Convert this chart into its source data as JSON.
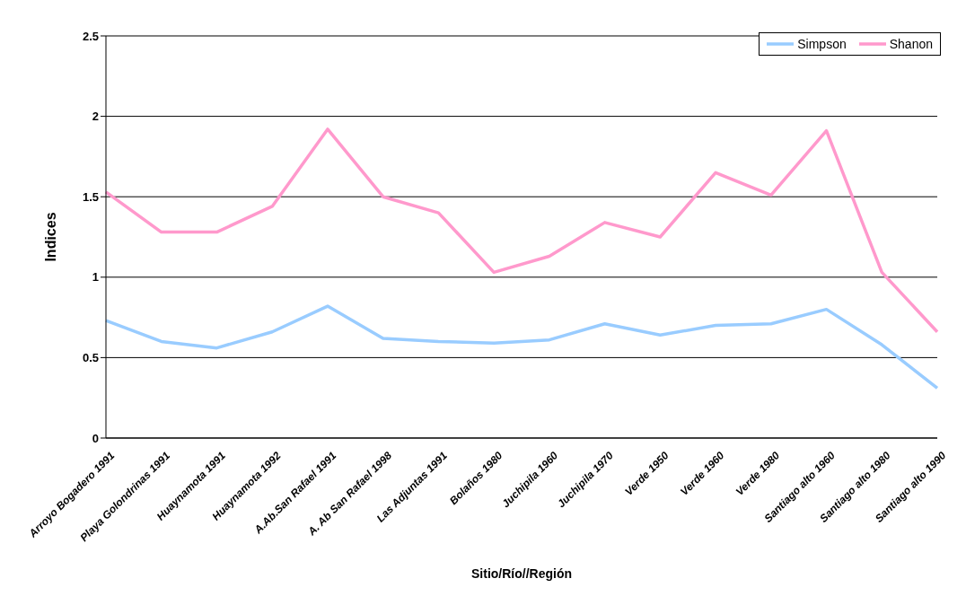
{
  "chart_data": {
    "type": "line",
    "xlabel": "Sitio/Río//Región",
    "ylabel": "Indices",
    "categories": [
      "Arroyo Bogadero 1991",
      "Playa Golondrinas 1991",
      "Huaynamota 1991",
      "Huaynamota 1992",
      "A.Ab.San Rafael 1991",
      "A. Ab San Rafael 1998",
      "Las Adjuntas 1991",
      "Bolaños 1980",
      "Juchipila 1960",
      "Juchipila 1970",
      "Verde 1950",
      "Verde 1960",
      "Verde 1980",
      "Santiago alto 1960",
      "Santiago alto 1980",
      "Santiago alto 1990"
    ],
    "series": [
      {
        "name": "Simpson",
        "color": "#99ccff",
        "values": [
          0.73,
          0.6,
          0.56,
          0.66,
          0.82,
          0.62,
          0.6,
          0.59,
          0.61,
          0.71,
          0.64,
          0.7,
          0.71,
          0.8,
          0.58,
          0.31
        ]
      },
      {
        "name": "Shanon",
        "color": "#ff99cc",
        "values": [
          1.53,
          1.28,
          1.28,
          1.44,
          1.92,
          1.5,
          1.4,
          1.03,
          1.13,
          1.34,
          1.25,
          1.65,
          1.51,
          1.91,
          1.03,
          0.66
        ]
      }
    ],
    "ylim": [
      0,
      2.5
    ],
    "yticks": [
      0,
      0.5,
      1,
      1.5,
      2,
      2.5
    ],
    "grid": "y",
    "legend": "top right",
    "marker": "none",
    "line_style": "solid"
  }
}
